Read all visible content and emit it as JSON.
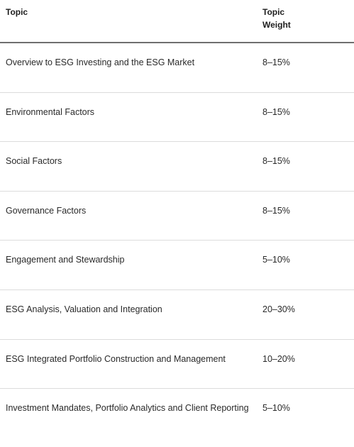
{
  "table": {
    "headers": {
      "topic": "Topic",
      "weight": "Topic\nWeight"
    },
    "rows": [
      {
        "topic": "Overview to ESG Investing and the ESG Market",
        "weight": "8–15%"
      },
      {
        "topic": "Environmental Factors",
        "weight": "8–15%"
      },
      {
        "topic": "Social Factors",
        "weight": "8–15%"
      },
      {
        "topic": "Governance Factors",
        "weight": "8–15%"
      },
      {
        "topic": "Engagement and Stewardship",
        "weight": "5–10%"
      },
      {
        "topic": "ESG Analysis, Valuation and Integration",
        "weight": "20–30%"
      },
      {
        "topic": "ESG Integrated Portfolio Construction and Management",
        "weight": "10–20%"
      },
      {
        "topic": "Investment Mandates, Portfolio Analytics and Client Reporting",
        "weight": "5–10%"
      }
    ]
  }
}
